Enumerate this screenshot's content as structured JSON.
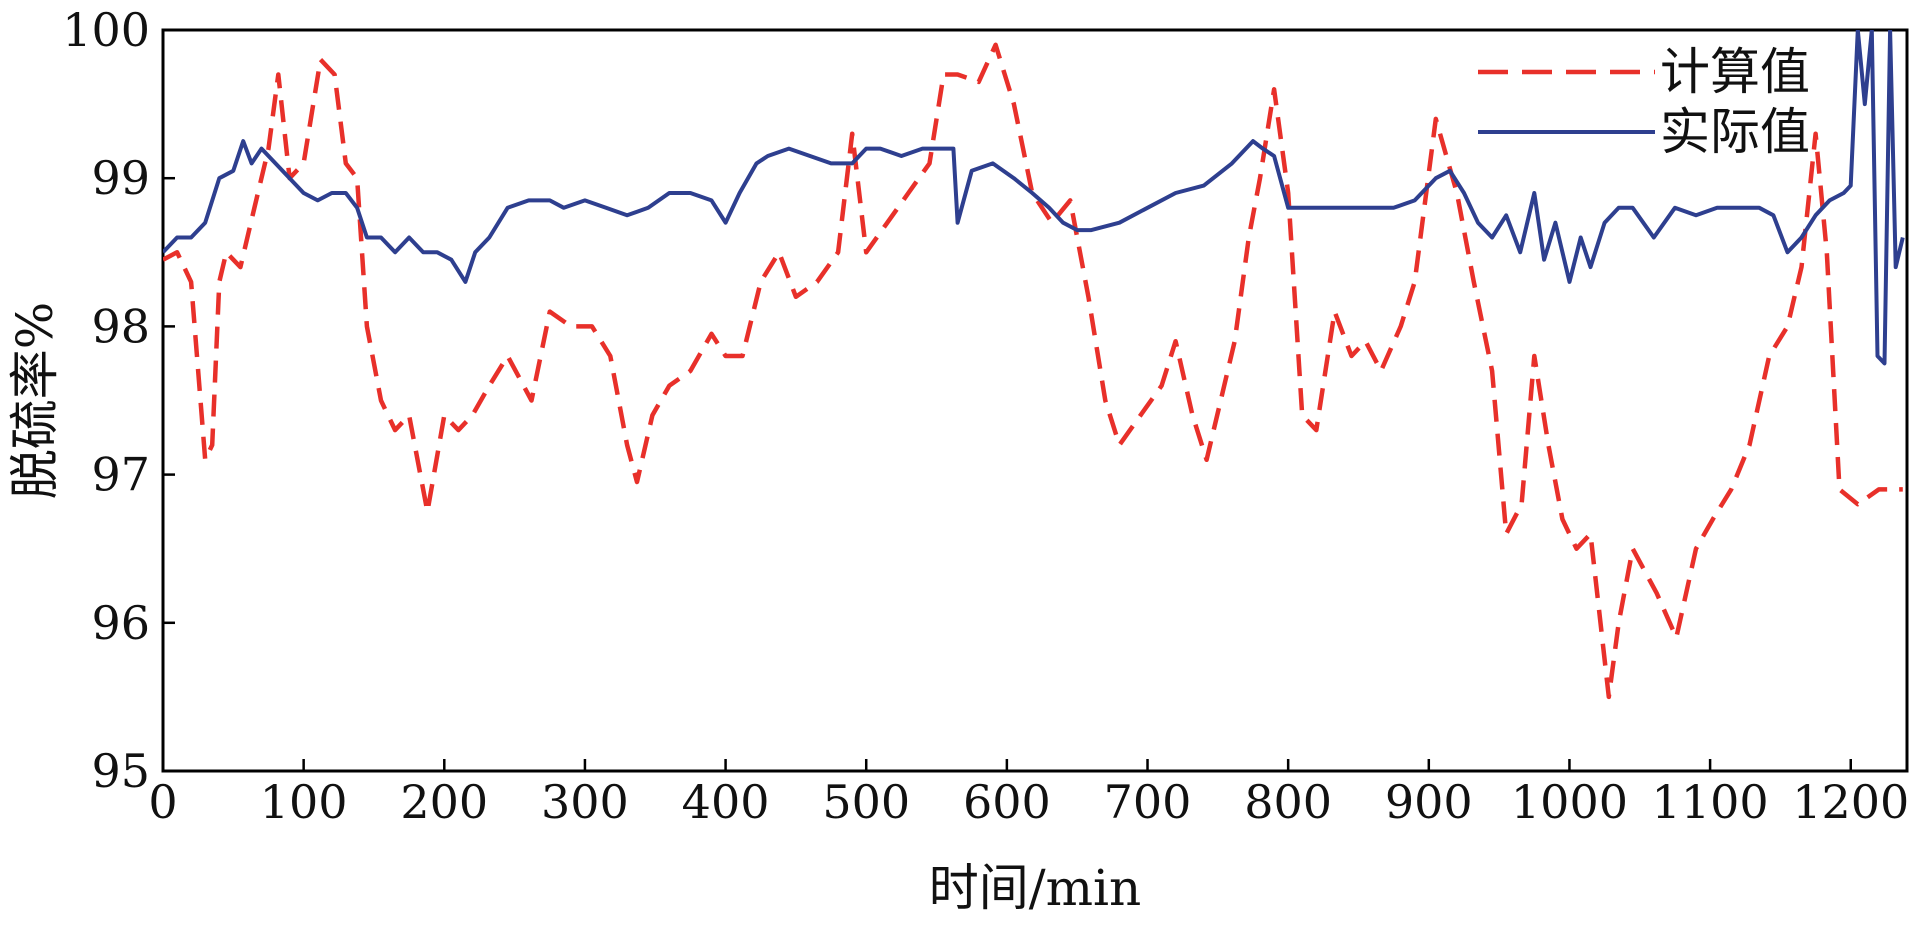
{
  "chart_data": {
    "type": "line",
    "title": "",
    "xlabel": "时间/min",
    "ylabel": "脱硫率%",
    "xlim": [
      0,
      1240
    ],
    "ylim": [
      95,
      100
    ],
    "xticks": [
      0,
      100,
      200,
      300,
      400,
      500,
      600,
      700,
      800,
      900,
      1000,
      1100,
      1200
    ],
    "yticks": [
      95,
      96,
      97,
      98,
      99,
      100
    ],
    "legend_position": "top-right",
    "grid": false,
    "series": [
      {
        "name": "计算值",
        "style": "dashed",
        "color": "#e8302a",
        "x": [
          0,
          10,
          20,
          30,
          35,
          40,
          45,
          55,
          65,
          75,
          82,
          90,
          100,
          112,
          122,
          130,
          138,
          145,
          155,
          165,
          175,
          188,
          200,
          210,
          220,
          232,
          245,
          262,
          275,
          290,
          305,
          318,
          330,
          337,
          348,
          360,
          375,
          390,
          400,
          412,
          425,
          438,
          450,
          465,
          480,
          490,
          500,
          515,
          530,
          545,
          555,
          565,
          580,
          592,
          605,
          618,
          632,
          645,
          658,
          670,
          680,
          695,
          710,
          720,
          732,
          742,
          752,
          762,
          772,
          780,
          790,
          800,
          810,
          820,
          833,
          845,
          855,
          866,
          880,
          890,
          905,
          920,
          932,
          945,
          955,
          966,
          975,
          985,
          995,
          1005,
          1015,
          1028,
          1035,
          1045,
          1062,
          1076,
          1090,
          1102,
          1115,
          1128,
          1142,
          1155,
          1165,
          1175,
          1183,
          1192,
          1205,
          1220,
          1237
        ],
        "y": [
          98.45,
          98.5,
          98.3,
          97.1,
          97.2,
          98.3,
          98.5,
          98.4,
          98.8,
          99.2,
          99.7,
          99.0,
          99.1,
          99.8,
          99.7,
          99.1,
          99.0,
          98.0,
          97.5,
          97.3,
          97.4,
          96.75,
          97.4,
          97.3,
          97.4,
          97.6,
          97.8,
          97.5,
          98.1,
          98.0,
          98.0,
          97.8,
          97.2,
          96.95,
          97.4,
          97.6,
          97.7,
          97.95,
          97.8,
          97.8,
          98.3,
          98.5,
          98.2,
          98.3,
          98.5,
          99.3,
          98.5,
          98.7,
          98.9,
          99.1,
          99.7,
          99.7,
          99.65,
          99.9,
          99.5,
          98.9,
          98.7,
          98.85,
          98.2,
          97.5,
          97.2,
          97.4,
          97.6,
          97.9,
          97.4,
          97.1,
          97.5,
          97.9,
          98.6,
          99.0,
          99.6,
          98.9,
          97.4,
          97.3,
          98.1,
          97.8,
          97.9,
          97.7,
          98.0,
          98.3,
          99.4,
          98.9,
          98.3,
          97.7,
          96.6,
          96.8,
          97.8,
          97.2,
          96.7,
          96.5,
          96.6,
          95.5,
          96.0,
          96.5,
          96.2,
          95.9,
          96.5,
          96.7,
          96.9,
          97.2,
          97.8,
          98.0,
          98.4,
          99.3,
          98.5,
          96.9,
          96.8,
          96.9,
          96.9
        ]
      },
      {
        "name": "实际值",
        "style": "solid",
        "color": "#2e3f8f",
        "x": [
          0,
          10,
          20,
          30,
          40,
          50,
          57,
          63,
          70,
          80,
          90,
          100,
          110,
          120,
          130,
          138,
          145,
          155,
          165,
          175,
          185,
          195,
          205,
          215,
          222,
          232,
          245,
          260,
          275,
          285,
          300,
          315,
          330,
          345,
          360,
          375,
          390,
          400,
          410,
          422,
          430,
          445,
          460,
          475,
          490,
          500,
          510,
          525,
          540,
          555,
          562,
          565,
          575,
          590,
          605,
          618,
          630,
          640,
          650,
          660,
          680,
          700,
          720,
          740,
          760,
          775,
          782,
          790,
          800,
          815,
          830,
          845,
          860,
          875,
          890,
          905,
          915,
          925,
          935,
          945,
          955,
          965,
          975,
          982,
          990,
          1000,
          1008,
          1015,
          1025,
          1035,
          1045,
          1060,
          1075,
          1090,
          1105,
          1120,
          1135,
          1145,
          1155,
          1165,
          1175,
          1185,
          1195,
          1200,
          1205,
          1210,
          1215,
          1219,
          1224,
          1228,
          1232,
          1237
        ],
        "y": [
          98.5,
          98.6,
          98.6,
          98.7,
          99.0,
          99.05,
          99.25,
          99.1,
          99.2,
          99.1,
          99.0,
          98.9,
          98.85,
          98.9,
          98.9,
          98.8,
          98.6,
          98.6,
          98.5,
          98.6,
          98.5,
          98.5,
          98.45,
          98.3,
          98.5,
          98.6,
          98.8,
          98.85,
          98.85,
          98.8,
          98.85,
          98.8,
          98.75,
          98.8,
          98.9,
          98.9,
          98.85,
          98.7,
          98.9,
          99.1,
          99.15,
          99.2,
          99.15,
          99.1,
          99.1,
          99.2,
          99.2,
          99.15,
          99.2,
          99.2,
          99.2,
          98.7,
          99.05,
          99.1,
          99.0,
          98.9,
          98.8,
          98.7,
          98.65,
          98.65,
          98.7,
          98.8,
          98.9,
          98.95,
          99.1,
          99.25,
          99.2,
          99.15,
          98.8,
          98.8,
          98.8,
          98.8,
          98.8,
          98.8,
          98.85,
          99.0,
          99.05,
          98.9,
          98.7,
          98.6,
          98.75,
          98.5,
          98.9,
          98.45,
          98.7,
          98.3,
          98.6,
          98.4,
          98.7,
          98.8,
          98.8,
          98.6,
          98.8,
          98.75,
          98.8,
          98.8,
          98.8,
          98.75,
          98.5,
          98.6,
          98.75,
          98.85,
          98.9,
          98.95,
          100.0,
          99.5,
          100.0,
          97.8,
          97.75,
          100.0,
          98.4,
          98.6
        ]
      }
    ]
  }
}
